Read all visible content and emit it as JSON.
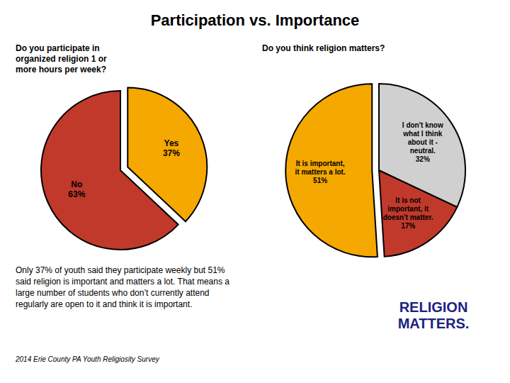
{
  "title": "Participation vs. Importance",
  "chart_data": [
    {
      "type": "pie",
      "title": "Do you participate in\norganized religion 1 or\nmore hours per week?",
      "categories": [
        "No",
        "Yes"
      ],
      "values": [
        63,
        37
      ],
      "value_labels": [
        "63%",
        "37%"
      ],
      "colors": [
        "#c0392b",
        "#f5a800"
      ],
      "data_labels": true
    },
    {
      "type": "pie",
      "title": "Do you think religion matters?",
      "categories": [
        "It is important,\nit matters a lot.",
        "It is not\nimportant, it\ndoesn't matter.",
        "I don't know\nwhat I think\nabout it -\nneutral."
      ],
      "values": [
        51,
        17,
        32
      ],
      "value_labels": [
        "51%",
        "17%",
        "32%"
      ],
      "colors": [
        "#f5a800",
        "#c0392b",
        "#d0d0d0"
      ],
      "data_labels": true
    }
  ],
  "annotations": [
    {
      "text": "Only 37% of youth said they participate weekly but 51%\nsaid religion is important and matters a lot.  That means a\nlarge number of students who don’t currently attend\nregularly are open to it and think it is important."
    },
    {
      "text": "2014 Erie County PA Youth Religiosity Survey"
    },
    {
      "text": "RELIGION\nMATTERS.",
      "color": "#1a237e"
    }
  ]
}
